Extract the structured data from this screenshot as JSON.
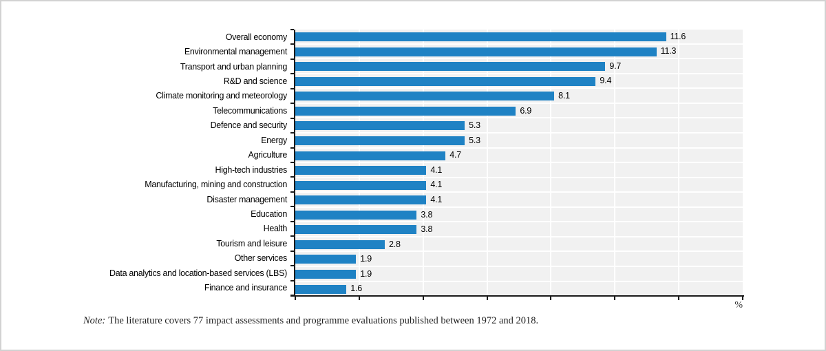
{
  "chart_data": {
    "type": "bar",
    "orientation": "horizontal",
    "title": "",
    "xlabel": "",
    "ylabel": "",
    "unit": "%",
    "xlim": [
      0,
      14
    ],
    "x_tick_step": 2,
    "grid": true,
    "legend": "none",
    "bar_color": "#1f82c4",
    "plot_bg": "#f1f1f1",
    "axis_color": "#1a1a1a",
    "categories": [
      "Overall economy",
      "Environmental management",
      "Transport and urban planning",
      "R&D and science",
      "Climate monitoring and meteorology",
      "Telecommunications",
      "Defence and security",
      "Energy",
      "Agriculture",
      "High-tech industries",
      "Manufacturing, mining and construction",
      "Disaster management",
      "Education",
      "Health",
      "Tourism and leisure",
      "Other services",
      "Data analytics and location-based services (LBS)",
      "Finance and insurance"
    ],
    "values": [
      11.6,
      11.3,
      9.7,
      9.4,
      8.1,
      6.9,
      5.3,
      5.3,
      4.7,
      4.1,
      4.1,
      4.1,
      3.8,
      3.8,
      2.8,
      1.9,
      1.9,
      1.6
    ],
    "value_labels": [
      "11.6",
      "11.3",
      "9.7",
      "9.4",
      "8.1",
      "6.9",
      "5.3",
      "5.3",
      "4.7",
      "4.1",
      "4.1",
      "4.1",
      "3.8",
      "3.8",
      "2.8",
      "1.9",
      "1.9",
      "1.6"
    ]
  },
  "note": {
    "label": "Note:",
    "text": "The literature covers 77 impact assessments and programme evaluations published between 1972 and 2018."
  }
}
